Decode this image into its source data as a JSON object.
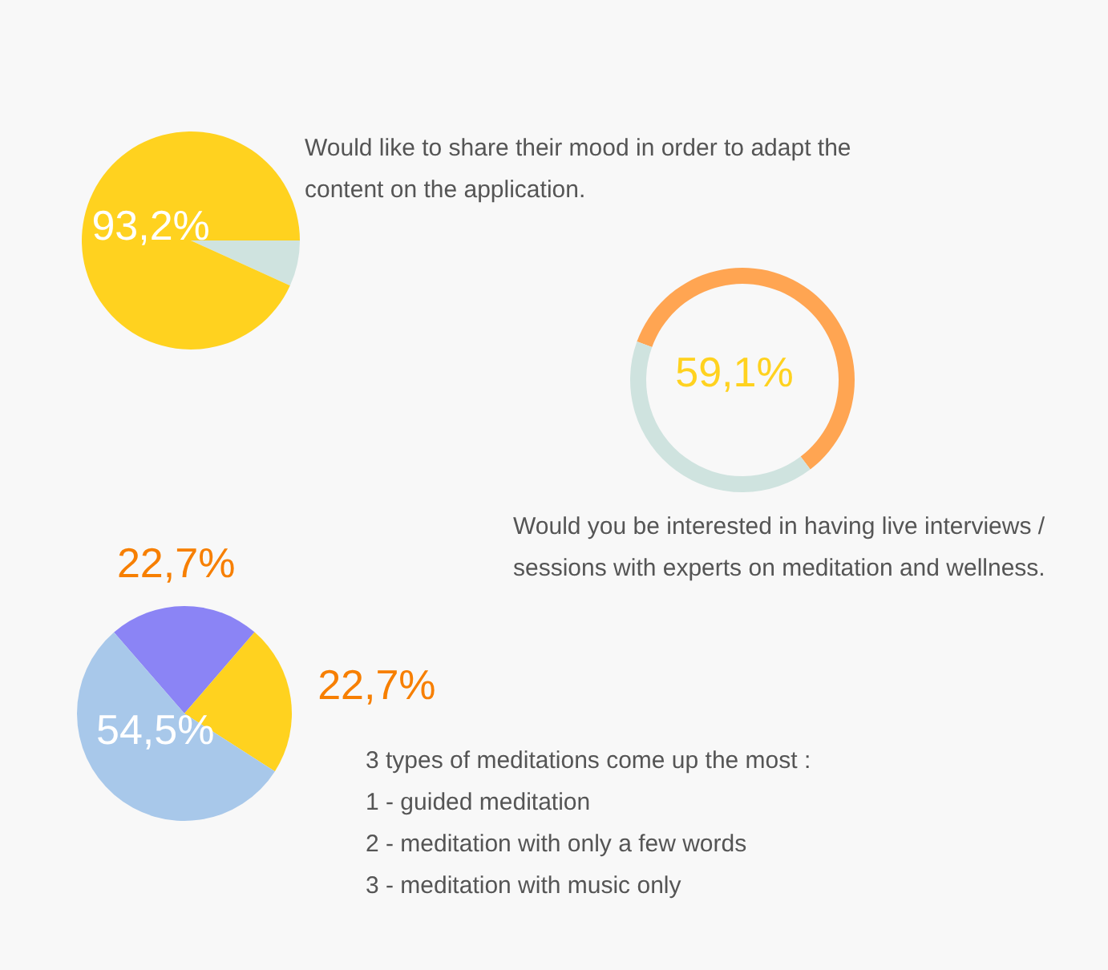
{
  "chart_data": [
    {
      "type": "pie",
      "title": "Would like to share their mood in order to adapt the content on the application.",
      "categories": [
        null,
        null
      ],
      "values": [
        6.8,
        93.2
      ],
      "colors": [
        "#cfe3df",
        "#ffd21f"
      ],
      "value_labels": [
        null,
        "93,2%"
      ]
    },
    {
      "type": "donut",
      "title": "Would you be interested in having live interviews / sessions with experts on meditation and wellness.",
      "categories": [
        null,
        null
      ],
      "values": [
        59.1,
        40.9
      ],
      "colors": [
        "#ffa552",
        "#cfe3df"
      ],
      "value_labels": [
        "59,1%",
        null
      ]
    },
    {
      "type": "pie",
      "title": "3 types of meditations come up the most :",
      "annotations": [
        "1 - guided meditation",
        "2 - meditation with only a few words",
        "3 - meditation with music only"
      ],
      "categories": [
        null,
        null,
        null
      ],
      "values": [
        22.7,
        22.7,
        54.5
      ],
      "colors": [
        "#8b84f5",
        "#ffd21f",
        "#a8c8ea"
      ],
      "value_labels": [
        "22,7%",
        "22,7%",
        "54,5%"
      ]
    }
  ]
}
